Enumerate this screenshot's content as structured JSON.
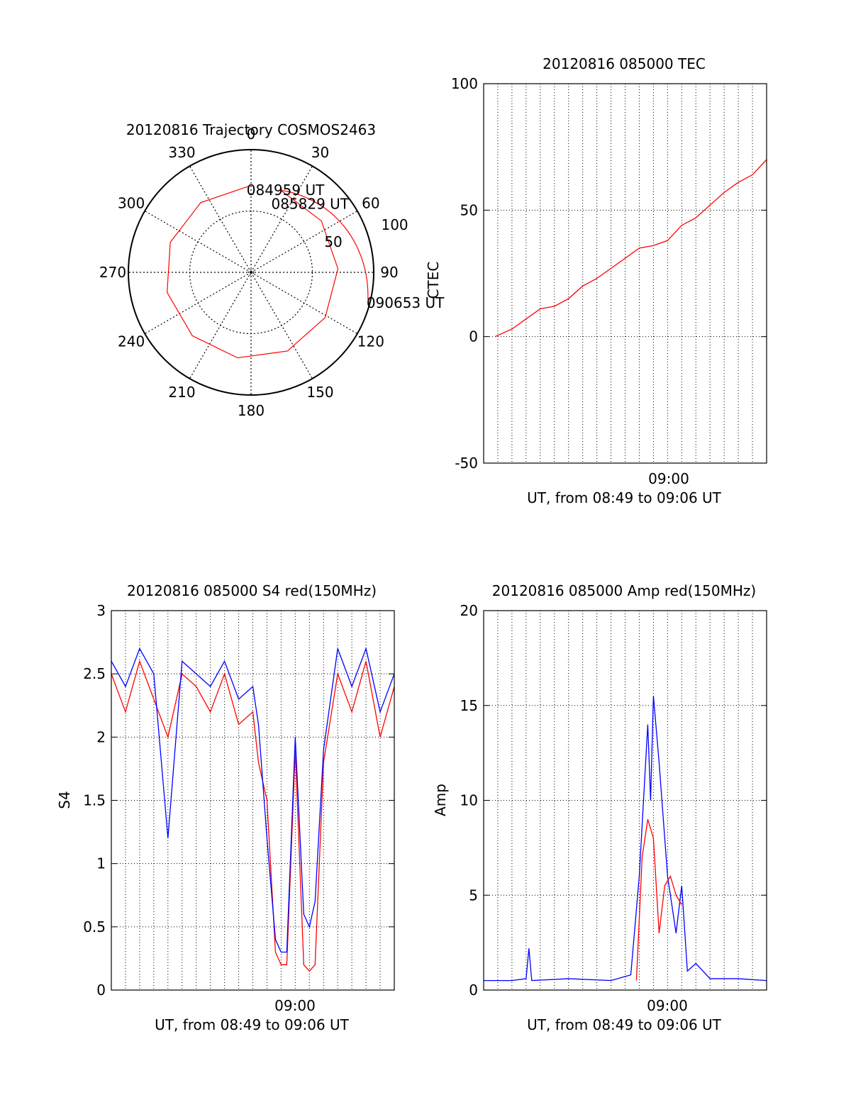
{
  "chart_data": [
    {
      "type": "polar",
      "title": "20120816 Trajectory COSMOS2463",
      "azimuth_labels": [
        "0",
        "30",
        "60",
        "90",
        "120",
        "150",
        "180",
        "210",
        "240",
        "270",
        "300",
        "330"
      ],
      "radial_labels": [
        "50",
        "100"
      ],
      "elevation_range": [
        0,
        90
      ],
      "grid": true,
      "series": [
        {
          "color": "#ff0000",
          "points": [
            {
              "az": 358,
              "el": 27,
              "label": "084959 UT"
            },
            {
              "az": 20,
              "el": 26
            },
            {
              "az": 40,
              "el": 21,
              "label": "085829 UT"
            },
            {
              "az": 60,
              "el": 15
            },
            {
              "az": 80,
              "el": 9
            },
            {
              "az": 103,
              "el": 2,
              "label": "090653 UT"
            }
          ]
        }
      ]
    },
    {
      "type": "line",
      "title": "20120816 085000 TEC",
      "ylabel": "CTEC",
      "xlabel": "UT, from 08:49 to 09:06 UT",
      "x_tick_label": "09:00",
      "ylim": [
        -50,
        100
      ],
      "y_ticks": [
        "-50",
        "0",
        "50",
        "100"
      ],
      "grid": true,
      "series": [
        {
          "color": "#ff0000",
          "x": [
            0.04,
            0.1,
            0.15,
            0.2,
            0.25,
            0.3,
            0.35,
            0.4,
            0.45,
            0.5,
            0.55,
            0.6,
            0.65,
            0.7,
            0.75,
            0.8,
            0.85,
            0.9,
            0.95,
            1.0
          ],
          "y": [
            0,
            3,
            7,
            11,
            12,
            15,
            20,
            23,
            27,
            31,
            35,
            36,
            38,
            44,
            47,
            52,
            57,
            61,
            64,
            70
          ]
        }
      ]
    },
    {
      "type": "line",
      "title": "20120816 085000 S4 red(150MHz)",
      "ylabel": "S4",
      "xlabel": "UT, from 08:49 to 09:06 UT",
      "x_tick_label": "09:00",
      "ylim": [
        0,
        3
      ],
      "y_ticks": [
        "0",
        "0.5",
        "1",
        "1.5",
        "2",
        "2.5",
        "3"
      ],
      "grid": true,
      "series": [
        {
          "color": "#ff0000",
          "x": [
            0.0,
            0.05,
            0.1,
            0.15,
            0.2,
            0.25,
            0.3,
            0.35,
            0.4,
            0.45,
            0.5,
            0.52,
            0.55,
            0.58,
            0.6,
            0.62,
            0.65,
            0.68,
            0.7,
            0.72,
            0.75,
            0.8,
            0.85,
            0.9,
            0.95,
            1.0
          ],
          "y": [
            2.5,
            2.2,
            2.6,
            2.3,
            2.0,
            2.5,
            2.4,
            2.2,
            2.5,
            2.1,
            2.2,
            1.8,
            1.5,
            0.3,
            0.2,
            0.2,
            1.9,
            0.2,
            0.15,
            0.2,
            1.8,
            2.5,
            2.2,
            2.6,
            2.0,
            2.4
          ]
        },
        {
          "color": "#0000ff",
          "x": [
            0.0,
            0.05,
            0.1,
            0.15,
            0.2,
            0.25,
            0.3,
            0.35,
            0.4,
            0.45,
            0.5,
            0.52,
            0.55,
            0.58,
            0.6,
            0.62,
            0.65,
            0.68,
            0.7,
            0.72,
            0.75,
            0.8,
            0.85,
            0.9,
            0.95,
            1.0
          ],
          "y": [
            2.6,
            2.4,
            2.7,
            2.5,
            1.2,
            2.6,
            2.5,
            2.4,
            2.6,
            2.3,
            2.4,
            2.1,
            1.2,
            0.4,
            0.3,
            0.3,
            2.0,
            0.6,
            0.5,
            0.7,
            1.9,
            2.7,
            2.4,
            2.7,
            2.2,
            2.5
          ]
        }
      ]
    },
    {
      "type": "line",
      "title": "20120816 085000 Amp red(150MHz)",
      "ylabel": "Amp",
      "xlabel": "UT, from 08:49 to 09:06 UT",
      "x_tick_label": "09:00",
      "ylim": [
        0,
        20
      ],
      "y_ticks": [
        "0",
        "5",
        "10",
        "15",
        "20"
      ],
      "grid": true,
      "series": [
        {
          "color": "#0000ff",
          "x": [
            0.0,
            0.1,
            0.15,
            0.16,
            0.17,
            0.3,
            0.45,
            0.52,
            0.55,
            0.58,
            0.59,
            0.6,
            0.62,
            0.65,
            0.68,
            0.7,
            0.72,
            0.75,
            0.8,
            0.9,
            1.0
          ],
          "y": [
            0.5,
            0.5,
            0.6,
            2.2,
            0.5,
            0.6,
            0.5,
            0.8,
            6.0,
            14.0,
            10.0,
            15.5,
            12.0,
            6.0,
            3.0,
            5.5,
            1.0,
            1.4,
            0.6,
            0.6,
            0.5
          ]
        },
        {
          "color": "#ff0000",
          "x": [
            0.54,
            0.56,
            0.58,
            0.6,
            0.62,
            0.64,
            0.66,
            0.68,
            0.7
          ],
          "y": [
            0.5,
            7.0,
            9.0,
            8.0,
            3.0,
            5.5,
            6.0,
            5.0,
            4.5
          ]
        }
      ]
    }
  ]
}
